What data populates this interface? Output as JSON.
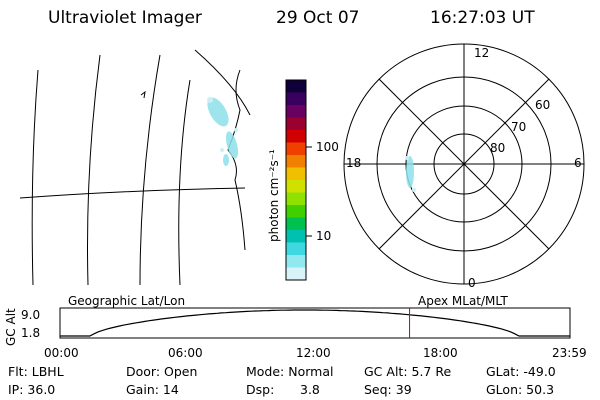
{
  "header": {
    "instrument": "Ultraviolet Imager",
    "date": "29 Oct 07",
    "time": "16:27:03 UT"
  },
  "colorbar": {
    "unit_label": "photon cm⁻²s⁻¹",
    "ticks": [
      "100",
      "10"
    ],
    "colors": [
      "#10003a",
      "#3a0060",
      "#6a0060",
      "#9a0030",
      "#d00000",
      "#f04000",
      "#f08000",
      "#f0c000",
      "#d0e000",
      "#90e000",
      "#40d000",
      "#00c050",
      "#00c0b0",
      "#40d8e0",
      "#90e8f0",
      "#d8f4f8"
    ]
  },
  "polar": {
    "mlt_labels": {
      "top": "12",
      "bottom": "0",
      "left": "18",
      "right": "6"
    },
    "lat_labels": [
      "60",
      "70",
      "80"
    ]
  },
  "orbit_plot": {
    "left_label": "Geographic Lat/Lon",
    "right_label": "Apex MLat/MLT",
    "y_axis_label": "GC Alt",
    "y_ticks": [
      "9.0",
      "1.8"
    ],
    "x_ticks": [
      "00:00",
      "06:00",
      "12:00",
      "18:00",
      "23:59"
    ],
    "current_time_hours": 16.45,
    "accent": "#d00000"
  },
  "footer": {
    "col1": [
      "Flt: LBHL",
      "IP: 36.0"
    ],
    "col2": [
      "Door: Open",
      "Gain: 14"
    ],
    "col3a": [
      "Mode: Normal",
      "Dsp:"
    ],
    "col3b": [
      "",
      "3.8"
    ],
    "col4": [
      "GC Alt: 5.7 Re",
      "Seq: 39"
    ],
    "col5": [
      "GLat: -49.0",
      "GLon:  50.3"
    ]
  }
}
